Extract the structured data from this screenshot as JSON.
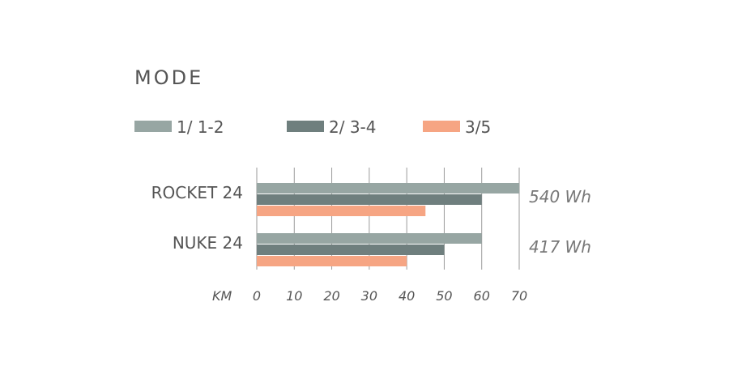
{
  "chart_data": {
    "type": "bar",
    "orientation": "horizontal",
    "title": "MODE",
    "xlabel": "KM",
    "xlim": [
      0,
      70
    ],
    "xticks": [
      "0",
      "10",
      "20",
      "30",
      "40",
      "50",
      "60",
      "70"
    ],
    "grid": true,
    "legend_position": "top",
    "categories": [
      "ROCKET 24",
      "NUKE 24"
    ],
    "category_annotations": [
      "540 Wh",
      "417 Wh"
    ],
    "series": [
      {
        "name": "1/ 1-2",
        "color": "#97a6a3",
        "values": [
          70,
          60
        ]
      },
      {
        "name": "2/ 3-4",
        "color": "#6f7f7e",
        "values": [
          60,
          50
        ]
      },
      {
        "name": "3/5",
        "color": "#f6a583",
        "values": [
          45,
          40
        ]
      }
    ]
  }
}
